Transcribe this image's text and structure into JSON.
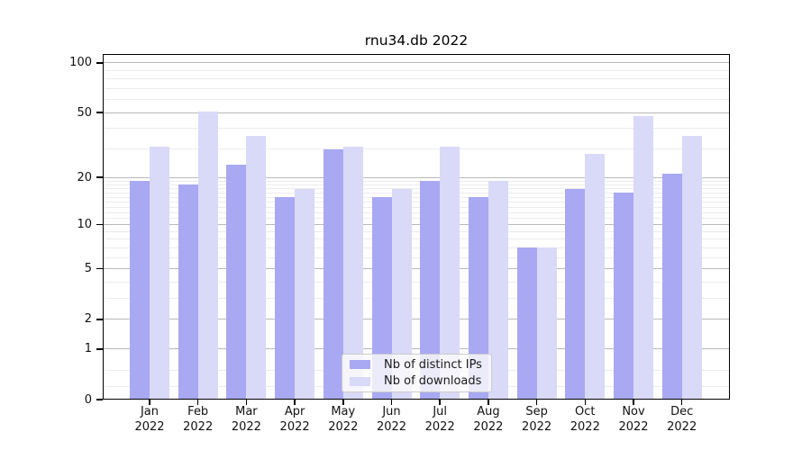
{
  "chart_data": {
    "type": "bar",
    "title": "rnu34.db 2022",
    "categories": [
      "Jan",
      "Feb",
      "Mar",
      "Apr",
      "May",
      "Jun",
      "Jul",
      "Aug",
      "Sep",
      "Oct",
      "Nov",
      "Dec"
    ],
    "category_year": "2022",
    "series": [
      {
        "name": "Nb of distinct IPs",
        "color": "#a8a8f3",
        "values": [
          19,
          18,
          24,
          15,
          30,
          15,
          19,
          15,
          7,
          17,
          16,
          21
        ]
      },
      {
        "name": "Nb of downloads",
        "color": "#d9d9f8",
        "values": [
          31,
          51,
          36,
          17,
          31,
          17,
          31,
          19,
          7,
          28,
          48,
          36
        ]
      }
    ],
    "xlabel": "",
    "ylabel": "",
    "yscale": "log1p",
    "ylim": [
      0,
      113
    ],
    "y_major_ticks": [
      0,
      1,
      2,
      5,
      10,
      20,
      50,
      100
    ],
    "y_minor_ticks": [
      0.2,
      0.5,
      3,
      4,
      6,
      7,
      8,
      9,
      11,
      12,
      13,
      14,
      15,
      16,
      17,
      18,
      19,
      30,
      40,
      60,
      70,
      80,
      90
    ],
    "grid": true,
    "legend_position": "lower center"
  },
  "colors": {
    "background": "#ffffff",
    "bar_distinct_ips": "#a8a8f3",
    "bar_downloads": "#d9d9f8",
    "grid_major": "#b9b9b9",
    "grid_minor": "#ececec",
    "axis": "#000000",
    "legend_border": "#cccccc"
  }
}
